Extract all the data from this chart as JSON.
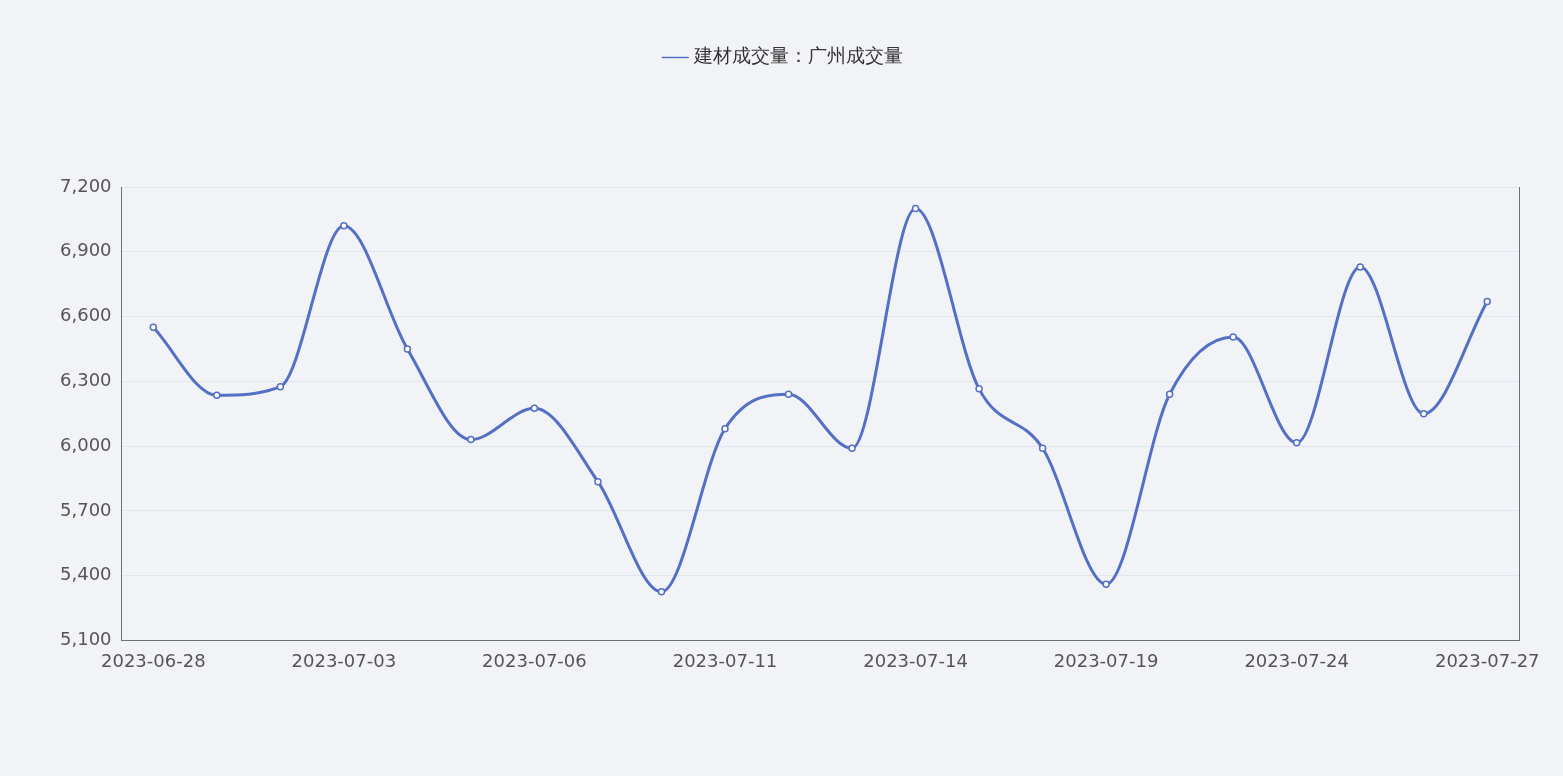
{
  "chart_data": {
    "type": "line",
    "categories": [
      "2023-06-28",
      null,
      null,
      "2023-07-03",
      null,
      null,
      "2023-07-06",
      null,
      null,
      "2023-07-11",
      null,
      null,
      "2023-07-14",
      null,
      null,
      "2023-07-19",
      null,
      null,
      "2023-07-24",
      null,
      null,
      "2023-07-27"
    ],
    "series": [
      {
        "name": "建材成交量：广州成交量",
        "color": "#5470c6",
        "values": [
          6550,
          6235,
          6275,
          7020,
          6450,
          6030,
          6175,
          5835,
          5325,
          6080,
          6240,
          5990,
          7100,
          6265,
          5990,
          5360,
          6240,
          6505,
          6015,
          6830,
          6150,
          6670
        ]
      }
    ],
    "ylim": [
      5100,
      7200
    ],
    "yticks": [
      {
        "value": 5100,
        "label": "5,100"
      },
      {
        "value": 5400,
        "label": "5,400"
      },
      {
        "value": 5700,
        "label": "5,700"
      },
      {
        "value": 6000,
        "label": "6,000"
      },
      {
        "value": 6300,
        "label": "6,300"
      },
      {
        "value": 6600,
        "label": "6,600"
      },
      {
        "value": 6900,
        "label": "6,900"
      },
      {
        "value": 7200,
        "label": "7,200"
      }
    ],
    "grid": "y",
    "legend": "top",
    "marker": "circle",
    "line_style": "solid"
  }
}
